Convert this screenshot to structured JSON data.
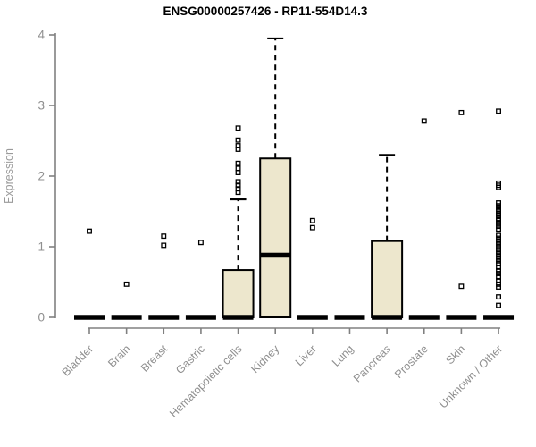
{
  "chart_data": {
    "type": "boxplot",
    "title": "ENSG00000257426 - RP11-554D14.3",
    "ylabel": "Expression",
    "xlabel": "",
    "ylim": [
      0,
      4
    ],
    "yticks": [
      0,
      1,
      2,
      3,
      4
    ],
    "grid": false,
    "legend": "none",
    "categories": [
      "Bladder",
      "Brain",
      "Breast",
      "Gastric",
      "Hematopoietic cells",
      "Kidney",
      "Liver",
      "Lung",
      "Pancreas",
      "Prostate",
      "Skin",
      "Unknown / Other"
    ],
    "boxes": [
      {
        "category": "Bladder",
        "q1": 0,
        "median": 0,
        "q3": 0,
        "whisker_low": 0,
        "whisker_high": 0,
        "outliers": [
          1.22
        ]
      },
      {
        "category": "Brain",
        "q1": 0,
        "median": 0,
        "q3": 0,
        "whisker_low": 0,
        "whisker_high": 0,
        "outliers": [
          0.47
        ]
      },
      {
        "category": "Breast",
        "q1": 0,
        "median": 0,
        "q3": 0,
        "whisker_low": 0,
        "whisker_high": 0,
        "outliers": [
          1.02,
          1.15
        ]
      },
      {
        "category": "Gastric",
        "q1": 0,
        "median": 0,
        "q3": 0,
        "whisker_low": 0,
        "whisker_high": 0,
        "outliers": [
          1.06
        ]
      },
      {
        "category": "Hematopoietic cells",
        "q1": 0,
        "median": 0,
        "q3": 0.67,
        "whisker_low": 0,
        "whisker_high": 1.67,
        "outliers": [
          1.77,
          1.82,
          1.87,
          1.92,
          2.05,
          2.11,
          2.18,
          2.38,
          2.43,
          2.51,
          2.68
        ]
      },
      {
        "category": "Kidney",
        "q1": 0,
        "median": 0.88,
        "q3": 2.25,
        "whisker_low": 0,
        "whisker_high": 3.95,
        "outliers": []
      },
      {
        "category": "Liver",
        "q1": 0,
        "median": 0,
        "q3": 0,
        "whisker_low": 0,
        "whisker_high": 0,
        "outliers": [
          1.27,
          1.37
        ]
      },
      {
        "category": "Lung",
        "q1": 0,
        "median": 0,
        "q3": 0,
        "whisker_low": 0,
        "whisker_high": 0,
        "outliers": []
      },
      {
        "category": "Pancreas",
        "q1": 0,
        "median": 0,
        "q3": 1.08,
        "whisker_low": 0,
        "whisker_high": 2.3,
        "outliers": []
      },
      {
        "category": "Prostate",
        "q1": 0,
        "median": 0,
        "q3": 0,
        "whisker_low": 0,
        "whisker_high": 0,
        "outliers": [
          2.78
        ]
      },
      {
        "category": "Skin",
        "q1": 0,
        "median": 0,
        "q3": 0,
        "whisker_low": 0,
        "whisker_high": 0,
        "outliers": [
          0.44,
          2.9
        ]
      },
      {
        "category": "Unknown / Other",
        "q1": 0,
        "median": 0,
        "q3": 0,
        "whisker_low": 0,
        "whisker_high": 0,
        "outliers": [
          0.17,
          0.29,
          0.43,
          0.47,
          0.52,
          0.57,
          0.62,
          0.66,
          0.71,
          0.76,
          0.8,
          0.84,
          0.88,
          0.92,
          0.96,
          1.0,
          1.04,
          1.08,
          1.12,
          1.16,
          1.25,
          1.29,
          1.33,
          1.37,
          1.4,
          1.44,
          1.47,
          1.51,
          1.55,
          1.58,
          1.62,
          1.84,
          1.87,
          1.9,
          2.92
        ]
      }
    ],
    "colors": {
      "box_fill": "#EDE7CD",
      "box_border": "#000000",
      "median": "#000000",
      "outlier": "#000000",
      "axis_line": "#808080",
      "tick_label": "#8F8F8F",
      "axis_label": "#9A9A9A",
      "title": "#000000",
      "background": "#FFFFFF"
    }
  }
}
